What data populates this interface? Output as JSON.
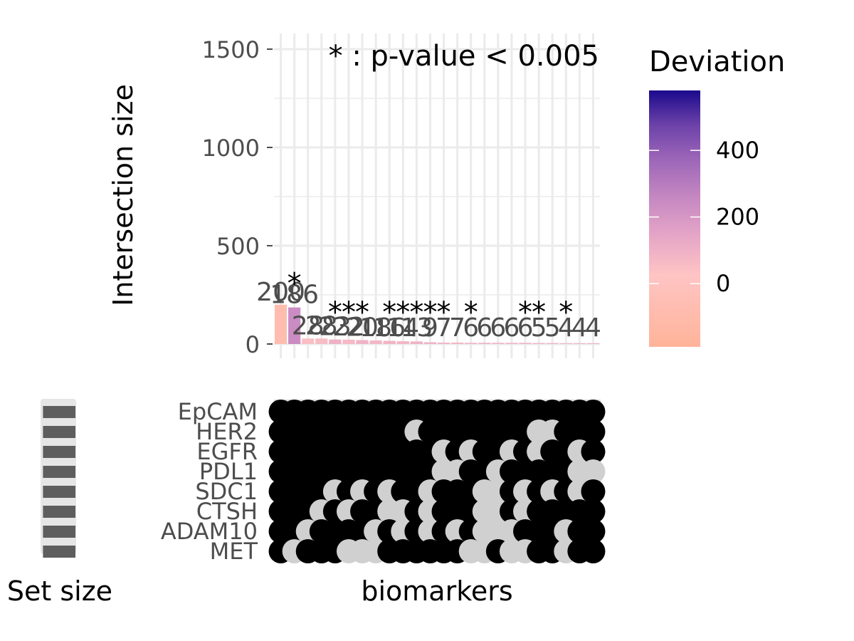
{
  "chart_data": {
    "type": "bar",
    "subtype": "upset",
    "ylabel": "Intersection size",
    "xlabel": "biomarkers",
    "setsize_label": "Set size",
    "annotation": "* : p-value < 0.005",
    "yticks": [
      0,
      500,
      1000,
      1500
    ],
    "ylim": [
      0,
      1500
    ],
    "sets": [
      "EpCAM",
      "HER2",
      "EGFR",
      "PDL1",
      "SDC1",
      "CTSH",
      "ADAM10",
      "MET"
    ],
    "values": [
      200,
      186,
      28,
      28,
      23,
      22,
      20,
      18,
      16,
      14,
      13,
      9,
      7,
      7,
      6,
      6,
      6,
      6,
      6,
      5,
      5,
      4,
      4,
      4
    ],
    "value_labels": [
      "200",
      "186",
      "28",
      "28",
      "23",
      "22",
      "20",
      "18",
      "16",
      "14",
      "13",
      "9",
      "7",
      "7",
      "6",
      "6",
      "6",
      "6",
      "6",
      "5",
      "5",
      "4",
      "4",
      "4"
    ],
    "deviation": [
      -120,
      160,
      -40,
      -30,
      10,
      -20,
      5,
      -10,
      0,
      -5,
      10,
      5,
      0,
      -5,
      0,
      5,
      0,
      -5,
      0,
      5,
      0,
      0,
      0,
      0
    ],
    "significant": [
      false,
      true,
      false,
      false,
      true,
      true,
      true,
      false,
      true,
      true,
      true,
      true,
      true,
      false,
      true,
      false,
      false,
      false,
      true,
      true,
      false,
      true,
      false,
      false
    ],
    "marker": "*",
    "membership": [
      [
        1,
        1,
        1,
        1,
        1,
        1,
        1,
        1
      ],
      [
        1,
        1,
        1,
        1,
        1,
        1,
        1,
        0
      ],
      [
        1,
        1,
        1,
        1,
        1,
        1,
        0,
        1
      ],
      [
        1,
        1,
        1,
        1,
        1,
        0,
        1,
        1
      ],
      [
        1,
        1,
        1,
        1,
        0,
        1,
        1,
        1
      ],
      [
        1,
        1,
        1,
        1,
        1,
        0,
        1,
        0
      ],
      [
        1,
        1,
        1,
        1,
        0,
        1,
        1,
        0
      ],
      [
        1,
        1,
        1,
        1,
        1,
        1,
        0,
        0
      ],
      [
        1,
        1,
        1,
        1,
        0,
        0,
        1,
        1
      ],
      [
        1,
        1,
        1,
        1,
        1,
        0,
        0,
        1
      ],
      [
        1,
        0,
        1,
        1,
        1,
        1,
        1,
        1
      ],
      [
        1,
        1,
        1,
        1,
        0,
        0,
        0,
        1
      ],
      [
        1,
        1,
        0,
        0,
        1,
        1,
        1,
        1
      ],
      [
        1,
        1,
        1,
        0,
        1,
        1,
        0,
        1
      ],
      [
        1,
        1,
        0,
        1,
        1,
        1,
        1,
        0
      ],
      [
        1,
        1,
        1,
        1,
        0,
        0,
        0,
        0
      ],
      [
        1,
        1,
        1,
        0,
        0,
        0,
        0,
        1
      ],
      [
        1,
        1,
        0,
        1,
        1,
        1,
        0,
        0
      ],
      [
        1,
        1,
        1,
        1,
        0,
        0,
        1,
        0
      ],
      [
        1,
        0,
        0,
        1,
        1,
        1,
        1,
        1
      ],
      [
        1,
        0,
        1,
        1,
        0,
        1,
        1,
        1
      ],
      [
        1,
        1,
        1,
        1,
        1,
        1,
        0,
        0
      ],
      [
        1,
        1,
        0,
        0,
        0,
        1,
        1,
        1
      ],
      [
        1,
        1,
        1,
        0,
        1,
        1,
        1,
        1
      ]
    ],
    "set_sizes": [
      0.95,
      0.95,
      0.95,
      0.95,
      0.95,
      0.95,
      0.95,
      0.95
    ],
    "colorbar": {
      "title": "Deviation",
      "ticks": [
        0,
        200,
        400
      ],
      "range": [
        -190,
        580
      ],
      "colors": [
        "#ffb499",
        "#ffc4c4",
        "#e2a2c7",
        "#c184c0",
        "#9a64b8",
        "#6a40a8",
        "#1b0a8c"
      ]
    },
    "grid": true
  }
}
